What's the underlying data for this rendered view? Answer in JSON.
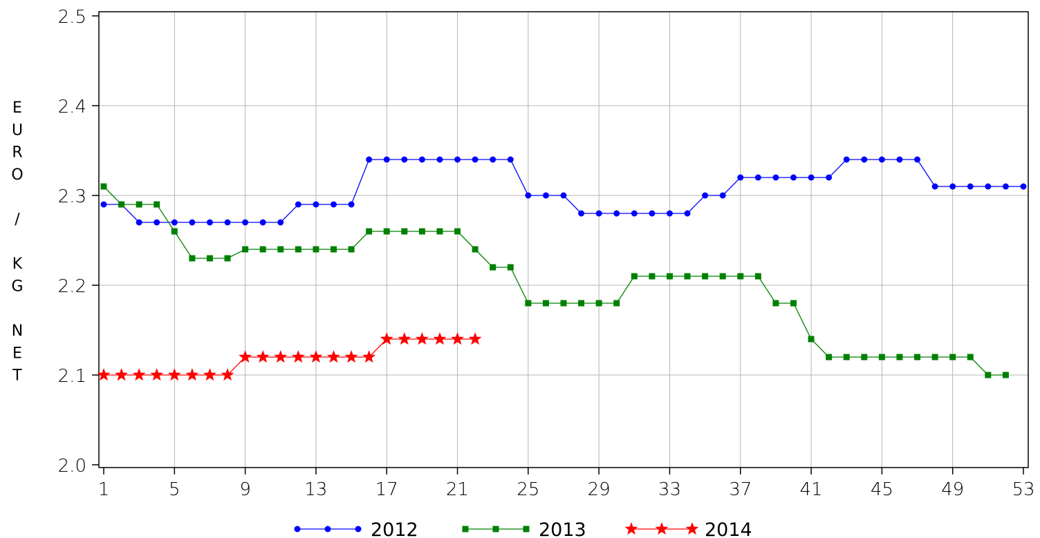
{
  "chart_data": {
    "type": "line",
    "ylabel": "EURO / KG NET",
    "ylabel_letters": [
      "E",
      "U",
      "R",
      "O",
      "",
      "/",
      "",
      "K",
      "G",
      "",
      "N",
      "E",
      "T"
    ],
    "xlim": [
      1,
      53
    ],
    "ylim": [
      2.0,
      2.5
    ],
    "x_ticks": [
      "1",
      "5",
      "9",
      "13",
      "17",
      "21",
      "25",
      "29",
      "33",
      "37",
      "41",
      "45",
      "49",
      "53"
    ],
    "y_ticks": [
      "2.0",
      "2.1",
      "2.2",
      "2.3",
      "2.4",
      "2.5"
    ],
    "grid": true,
    "legend_position": "bottom",
    "series": [
      {
        "name": "2012",
        "color": "#0000ff",
        "marker": "circle",
        "x": [
          1,
          2,
          3,
          4,
          5,
          6,
          7,
          8,
          9,
          10,
          11,
          12,
          13,
          14,
          15,
          16,
          17,
          18,
          19,
          20,
          21,
          22,
          23,
          24,
          25,
          26,
          27,
          28,
          29,
          30,
          31,
          32,
          33,
          34,
          35,
          36,
          37,
          38,
          39,
          40,
          41,
          42,
          43,
          44,
          45,
          46,
          47,
          48,
          49,
          50,
          51,
          52,
          53
        ],
        "values": [
          2.29,
          2.29,
          2.27,
          2.27,
          2.27,
          2.27,
          2.27,
          2.27,
          2.27,
          2.27,
          2.27,
          2.29,
          2.29,
          2.29,
          2.29,
          2.34,
          2.34,
          2.34,
          2.34,
          2.34,
          2.34,
          2.34,
          2.34,
          2.34,
          2.3,
          2.3,
          2.3,
          2.28,
          2.28,
          2.28,
          2.28,
          2.28,
          2.28,
          2.28,
          2.3,
          2.3,
          2.32,
          2.32,
          2.32,
          2.32,
          2.32,
          2.32,
          2.34,
          2.34,
          2.34,
          2.34,
          2.34,
          2.31,
          2.31,
          2.31,
          2.31,
          2.31,
          2.31
        ]
      },
      {
        "name": "2013",
        "color": "#008000",
        "marker": "square",
        "x": [
          1,
          2,
          3,
          4,
          5,
          6,
          7,
          8,
          9,
          10,
          11,
          12,
          13,
          14,
          15,
          16,
          17,
          18,
          19,
          20,
          21,
          22,
          23,
          24,
          25,
          26,
          27,
          28,
          29,
          30,
          31,
          32,
          33,
          34,
          35,
          36,
          37,
          38,
          39,
          40,
          41,
          42,
          43,
          44,
          45,
          46,
          47,
          48,
          49,
          50,
          51,
          52
        ],
        "values": [
          2.31,
          2.29,
          2.29,
          2.29,
          2.26,
          2.23,
          2.23,
          2.23,
          2.24,
          2.24,
          2.24,
          2.24,
          2.24,
          2.24,
          2.24,
          2.26,
          2.26,
          2.26,
          2.26,
          2.26,
          2.26,
          2.24,
          2.22,
          2.22,
          2.18,
          2.18,
          2.18,
          2.18,
          2.18,
          2.18,
          2.21,
          2.21,
          2.21,
          2.21,
          2.21,
          2.21,
          2.21,
          2.21,
          2.18,
          2.18,
          2.14,
          2.12,
          2.12,
          2.12,
          2.12,
          2.12,
          2.12,
          2.12,
          2.12,
          2.12,
          2.1,
          2.1
        ]
      },
      {
        "name": "2014",
        "color": "#ff0000",
        "marker": "star",
        "x": [
          1,
          2,
          3,
          4,
          5,
          6,
          7,
          8,
          9,
          10,
          11,
          12,
          13,
          14,
          15,
          16,
          17,
          18,
          19,
          20,
          21,
          22
        ],
        "values": [
          2.1,
          2.1,
          2.1,
          2.1,
          2.1,
          2.1,
          2.1,
          2.1,
          2.12,
          2.12,
          2.12,
          2.12,
          2.12,
          2.12,
          2.12,
          2.12,
          2.14,
          2.14,
          2.14,
          2.14,
          2.14,
          2.14
        ]
      }
    ]
  }
}
